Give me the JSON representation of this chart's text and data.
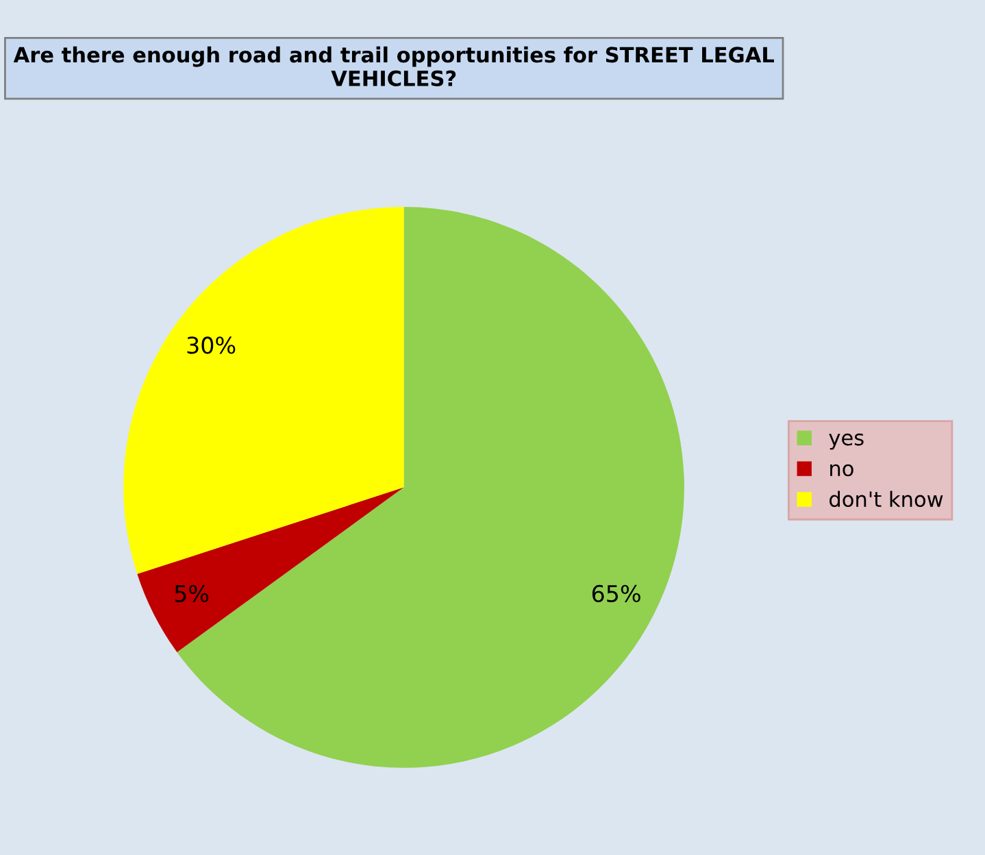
{
  "chart_data": {
    "type": "pie",
    "title": "Are there enough road and trail opportunities for STREET LEGAL VEHICLES?",
    "categories": [
      "yes",
      "no",
      "don't know"
    ],
    "values": [
      65,
      5,
      30
    ],
    "value_labels": [
      "65%",
      "5%",
      "30%"
    ],
    "colors": [
      "#92d050",
      "#c00000",
      "#ffff00"
    ],
    "legend": "right"
  }
}
